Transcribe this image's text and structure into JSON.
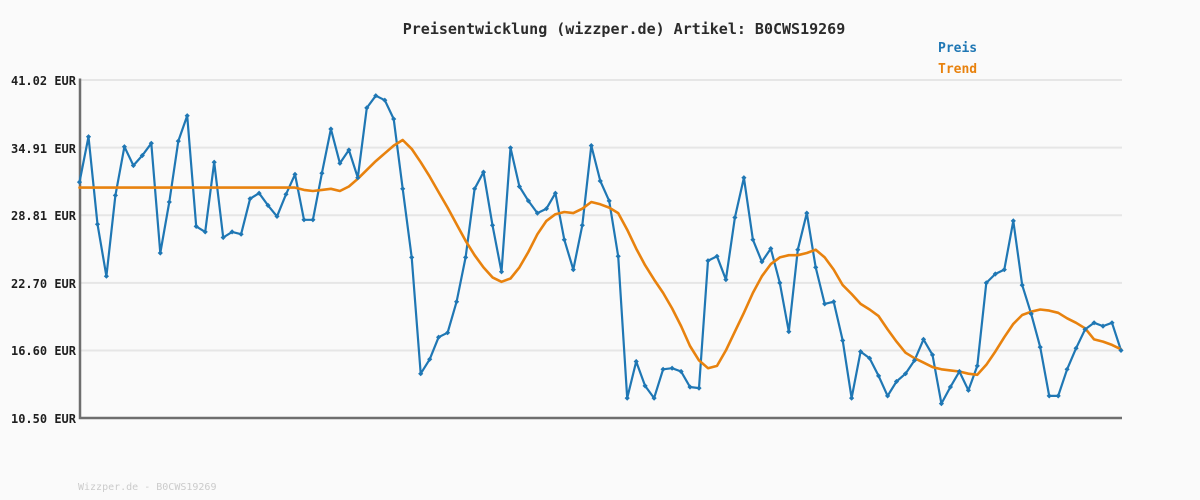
{
  "header": {
    "title": "Preisentwicklung (wizzper.de) Artikel: B0CWS19269"
  },
  "legend": {
    "position": "top-right",
    "items": [
      {
        "label": "Preis",
        "color": "#1f77b4"
      },
      {
        "label": "Trend",
        "color": "#e8820e"
      }
    ]
  },
  "footer": {
    "text": "Wizzper.de - B0CWS19269"
  },
  "colors": {
    "background": "#fafafa",
    "grid": "#e6e6e6",
    "axis": "#6e6e6e",
    "title_text": "#2b2b2b",
    "tick_text": "#1f1f1f",
    "footer_text": "#cbcbcb"
  },
  "chart_data": {
    "type": "line",
    "title": "Preisentwicklung (wizzper.de) Artikel: B0CWS19269",
    "currency": "EUR",
    "xlabel": "",
    "ylabel": "",
    "ylim": [
      10.5,
      41.02
    ],
    "grid": "horizontal-only",
    "legend_position": "top-right",
    "x_axis": {
      "tick_labels_visible": false,
      "point_count": 117
    },
    "yticks": [
      {
        "value": 41.02,
        "label": "41.02 EUR"
      },
      {
        "value": 34.91,
        "label": "34.91 EUR"
      },
      {
        "value": 28.81,
        "label": "28.81 EUR"
      },
      {
        "value": 22.7,
        "label": "22.70 EUR"
      },
      {
        "value": 16.6,
        "label": "16.60 EUR"
      },
      {
        "value": 10.5,
        "label": "10.50 EUR"
      }
    ],
    "series": [
      {
        "name": "Preis",
        "color": "#1f77b4",
        "marker": "diamond",
        "line_width": 2.2,
        "values": [
          31.8,
          35.9,
          28.0,
          23.3,
          30.6,
          35.0,
          33.3,
          34.2,
          35.3,
          25.4,
          30.0,
          35.5,
          37.8,
          27.8,
          27.3,
          33.6,
          26.8,
          27.3,
          27.1,
          30.3,
          30.8,
          29.7,
          28.7,
          30.7,
          32.5,
          28.4,
          28.4,
          32.6,
          36.6,
          33.5,
          34.7,
          32.2,
          38.5,
          39.6,
          39.2,
          37.5,
          31.2,
          25.0,
          14.5,
          15.8,
          17.8,
          18.2,
          21.0,
          25.0,
          31.2,
          32.7,
          27.9,
          23.7,
          34.9,
          31.4,
          30.1,
          29.0,
          29.4,
          30.8,
          26.6,
          23.9,
          27.9,
          35.1,
          31.9,
          30.1,
          25.1,
          12.3,
          15.6,
          13.4,
          12.3,
          14.9,
          15.0,
          14.7,
          13.3,
          13.2,
          24.7,
          25.1,
          23.0,
          28.6,
          32.2,
          26.6,
          24.6,
          25.8,
          22.7,
          18.3,
          25.7,
          29.0,
          24.1,
          20.8,
          21.0,
          17.5,
          12.3,
          16.5,
          15.9,
          14.3,
          12.5,
          13.8,
          14.5,
          15.7,
          17.6,
          16.2,
          11.8,
          13.3,
          14.7,
          13.0,
          15.2,
          22.7,
          23.5,
          23.9,
          28.3,
          22.5,
          19.9,
          16.9,
          12.5,
          12.5,
          14.9,
          16.8,
          18.5,
          19.1,
          18.8,
          19.1,
          16.6
        ]
      },
      {
        "name": "Trend",
        "color": "#e8820e",
        "marker": "none",
        "line_width": 2.6,
        "values": [
          31.3,
          31.3,
          31.3,
          31.3,
          31.3,
          31.3,
          31.3,
          31.3,
          31.3,
          31.3,
          31.3,
          31.3,
          31.3,
          31.3,
          31.3,
          31.3,
          31.3,
          31.3,
          31.3,
          31.3,
          31.3,
          31.3,
          31.3,
          31.3,
          31.3,
          31.1,
          31.0,
          31.1,
          31.2,
          31.0,
          31.4,
          32.1,
          32.9,
          33.7,
          34.4,
          35.1,
          35.6,
          34.8,
          33.6,
          32.3,
          30.9,
          29.5,
          28.0,
          26.5,
          25.2,
          24.1,
          23.2,
          22.8,
          23.1,
          24.1,
          25.5,
          27.1,
          28.3,
          28.9,
          29.1,
          29.0,
          29.4,
          30.0,
          29.8,
          29.5,
          29.0,
          27.5,
          25.8,
          24.3,
          23.0,
          21.8,
          20.4,
          18.8,
          17.0,
          15.7,
          15.0,
          15.2,
          16.6,
          18.3,
          20.0,
          21.8,
          23.3,
          24.4,
          25.0,
          25.2,
          25.2,
          25.4,
          25.7,
          25.0,
          23.9,
          22.5,
          21.7,
          20.8,
          20.3,
          19.7,
          18.5,
          17.4,
          16.4,
          15.9,
          15.5,
          15.1,
          14.9,
          14.8,
          14.7,
          14.5,
          14.4,
          15.3,
          16.5,
          17.8,
          19.0,
          19.8,
          20.1,
          20.3,
          20.2,
          20.0,
          19.5,
          19.1,
          18.6,
          17.6,
          17.4,
          17.1,
          16.7
        ]
      }
    ]
  }
}
